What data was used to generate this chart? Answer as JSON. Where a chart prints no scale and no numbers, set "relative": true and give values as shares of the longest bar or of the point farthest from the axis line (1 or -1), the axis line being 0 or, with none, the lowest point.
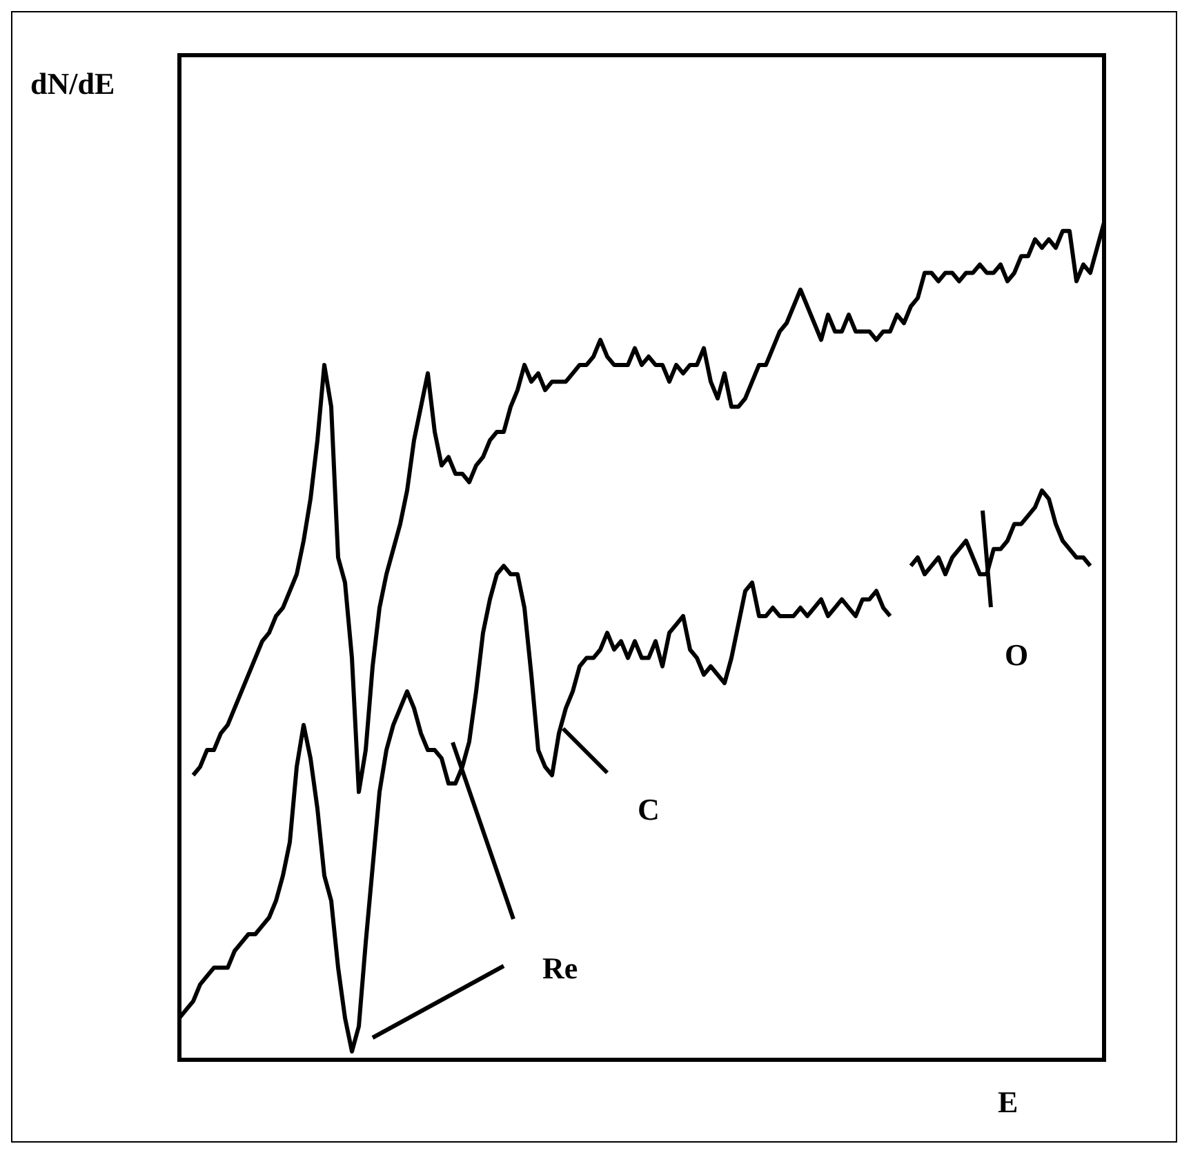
{
  "chart_data": {
    "type": "line",
    "relative": true,
    "xlabel": "E",
    "ylabel": "dN/dE",
    "legend": false,
    "marker": "none",
    "line_style": "solid",
    "categories": [
      null,
      null,
      null,
      null,
      null,
      null,
      null,
      null,
      null,
      null,
      null,
      null,
      null,
      null,
      null,
      null,
      null,
      null,
      null,
      null,
      null,
      null,
      null,
      null,
      null,
      null,
      null,
      null,
      null,
      null,
      null,
      null,
      null,
      null,
      null,
      null,
      null,
      null,
      null,
      null,
      null,
      null,
      null,
      null,
      null,
      null,
      null,
      null,
      null,
      null,
      null,
      null,
      null,
      null,
      null,
      null,
      null,
      null,
      null,
      null,
      null,
      null,
      null,
      null,
      null,
      null,
      null,
      null,
      null,
      null,
      null,
      null,
      null,
      null,
      null,
      null,
      null,
      null,
      null,
      null,
      null,
      null,
      null,
      null,
      null,
      null,
      null,
      null,
      null,
      null,
      null,
      null,
      null,
      null,
      null,
      null,
      null,
      null,
      null,
      null,
      null,
      null,
      null,
      null,
      null,
      null,
      null,
      null,
      null,
      null,
      null,
      null,
      null,
      null,
      null,
      null,
      null,
      null,
      null,
      null,
      null,
      null,
      null,
      null,
      null,
      null,
      null,
      null,
      null,
      null,
      null,
      null,
      null,
      null,
      null
    ],
    "series": [
      {
        "color": "#000000",
        "values": [
          null,
          null,
          0.34,
          0.35,
          0.37,
          0.37,
          0.39,
          0.4,
          0.42,
          0.44,
          0.46,
          0.48,
          0.5,
          0.51,
          0.53,
          0.54,
          0.56,
          0.58,
          0.62,
          0.67,
          0.74,
          0.83,
          0.78,
          0.6,
          0.57,
          0.48,
          0.32,
          0.37,
          0.47,
          0.54,
          0.58,
          0.61,
          0.64,
          0.68,
          0.74,
          0.78,
          0.82,
          0.75,
          0.71,
          0.72,
          0.7,
          0.7,
          0.69,
          0.71,
          0.72,
          0.74,
          0.75,
          0.75,
          0.78,
          0.8,
          0.83,
          0.81,
          0.82,
          0.8,
          0.81,
          0.81,
          0.81,
          0.82,
          0.83,
          0.83,
          0.84,
          0.86,
          0.84,
          0.83,
          0.83,
          0.83,
          0.85,
          0.83,
          0.84,
          0.83,
          0.83,
          0.81,
          0.83,
          0.82,
          0.83,
          0.83,
          0.85,
          0.81,
          0.79,
          0.82,
          0.78,
          0.78,
          0.79,
          0.81,
          0.83,
          0.83,
          0.85,
          0.87,
          0.88,
          0.9,
          0.92,
          0.9,
          0.88,
          0.86,
          0.89,
          0.87,
          0.87,
          0.89,
          0.87,
          0.87,
          0.87,
          0.86,
          0.87,
          0.87,
          0.89,
          0.88,
          0.9,
          0.91,
          0.94,
          0.94,
          0.93,
          0.94,
          0.94,
          0.93,
          0.94,
          0.94,
          0.95,
          0.94,
          0.94,
          0.95,
          0.93,
          0.94,
          0.96,
          0.96,
          0.98,
          0.97,
          0.98,
          0.97,
          0.99,
          0.99,
          0.93,
          0.95,
          0.94,
          0.97,
          1
        ]
      },
      {
        "color": "#000000",
        "values": [
          0.05,
          0.06,
          0.07,
          0.09,
          0.1,
          0.11,
          0.11,
          0.11,
          0.13,
          0.14,
          0.15,
          0.15,
          0.16,
          0.17,
          0.19,
          0.22,
          0.26,
          0.35,
          0.4,
          0.36,
          0.3,
          0.22,
          0.19,
          0.11,
          0.05,
          0.01,
          0.04,
          0.14,
          0.23,
          0.32,
          0.37,
          0.4,
          0.42,
          0.44,
          0.42,
          0.39,
          0.37,
          0.37,
          0.36,
          0.33,
          0.33,
          0.35,
          0.38,
          0.44,
          0.51,
          0.55,
          0.58,
          0.59,
          0.58,
          0.58,
          0.54,
          0.46,
          0.37,
          0.35,
          0.34,
          0.39,
          0.42,
          0.44,
          0.47,
          0.48,
          0.48,
          0.49,
          0.51,
          0.49,
          0.5,
          0.48,
          0.5,
          0.48,
          0.48,
          0.5,
          0.47,
          0.51,
          0.52,
          0.53,
          0.49,
          0.48,
          0.46,
          0.47,
          0.46,
          0.45,
          0.48,
          0.52,
          0.56,
          0.57,
          0.53,
          0.53,
          0.54,
          0.53,
          0.53,
          0.53,
          0.54,
          0.53,
          0.54,
          0.55,
          0.53,
          0.54,
          0.55,
          0.54,
          0.53,
          0.55,
          0.55,
          0.56,
          0.54,
          0.53,
          null,
          null,
          0.59,
          0.6,
          0.58,
          0.59,
          0.6,
          0.58,
          0.6,
          0.61,
          0.62,
          0.6,
          0.58,
          0.58,
          0.61,
          0.61,
          0.62,
          0.64,
          0.64,
          0.65,
          0.66,
          0.68,
          0.67,
          0.64,
          0.62,
          0.61,
          0.6,
          0.6,
          0.59,
          null,
          null
        ]
      }
    ],
    "annotations": [
      "Re",
      "C",
      "O"
    ]
  }
}
